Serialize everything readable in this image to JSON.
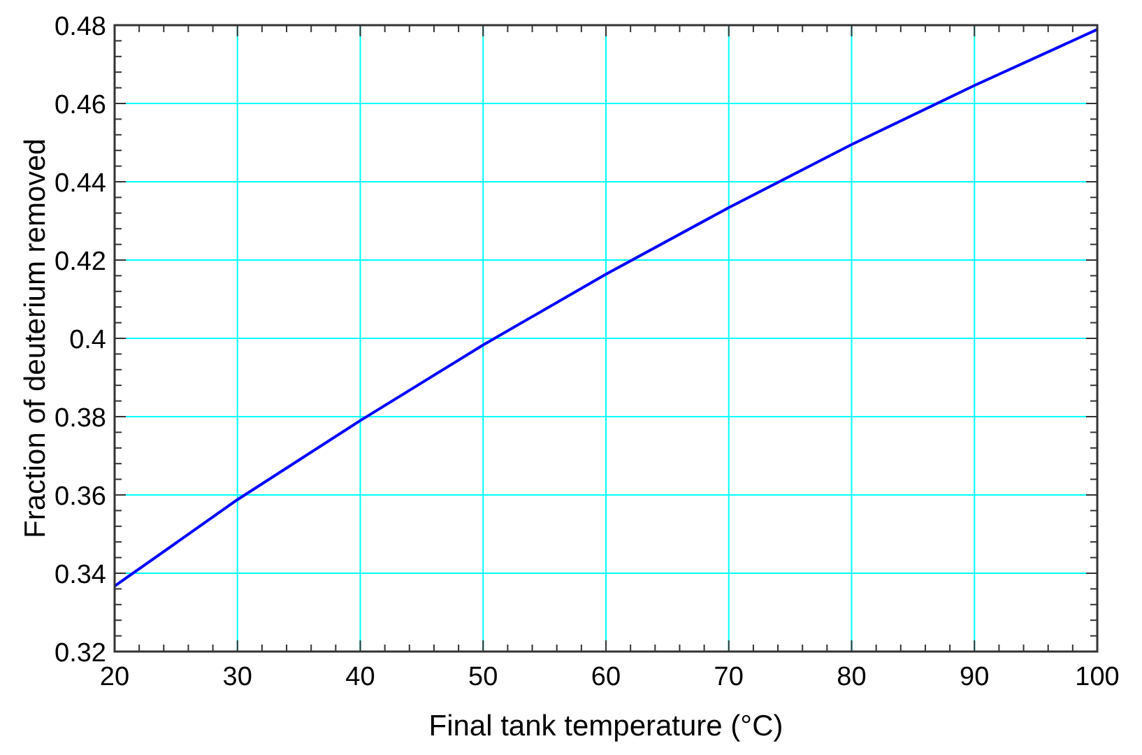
{
  "chart_data": {
    "type": "line",
    "xlabel": "Final tank temperature (°C)",
    "ylabel": "Fraction of deuterium removed",
    "x": [
      20,
      30,
      40,
      50,
      60,
      70,
      80,
      90,
      100
    ],
    "series": [
      {
        "color": "#0000ff",
        "values": [
          0.3367,
          0.3588,
          0.379,
          0.3983,
          0.4164,
          0.4334,
          0.4495,
          0.4646,
          0.4789
        ]
      }
    ],
    "xlim": [
      20,
      100
    ],
    "ylim": [
      0.32,
      0.48
    ],
    "xticks": [
      20,
      {
        "value": 22,
        "label": null
      },
      {
        "value": 24,
        "label": null
      },
      {
        "value": 26,
        "label": null
      },
      {
        "value": 28,
        "label": null
      },
      30,
      {
        "value": 32,
        "label": null
      },
      {
        "value": 34,
        "label": null
      },
      {
        "value": 36,
        "label": null
      },
      {
        "value": 38,
        "label": null
      },
      40,
      {
        "value": 42,
        "label": null
      },
      {
        "value": 44,
        "label": null
      },
      {
        "value": 46,
        "label": null
      },
      {
        "value": 48,
        "label": null
      },
      50,
      {
        "value": 52,
        "label": null
      },
      {
        "value": 54,
        "label": null
      },
      {
        "value": 56,
        "label": null
      },
      {
        "value": 58,
        "label": null
      },
      60,
      {
        "value": 62,
        "label": null
      },
      {
        "value": 64,
        "label": null
      },
      {
        "value": 66,
        "label": null
      },
      {
        "value": 68,
        "label": null
      },
      70,
      {
        "value": 72,
        "label": null
      },
      {
        "value": 74,
        "label": null
      },
      {
        "value": 76,
        "label": null
      },
      {
        "value": 78,
        "label": null
      },
      80,
      {
        "value": 82,
        "label": null
      },
      {
        "value": 84,
        "label": null
      },
      {
        "value": 86,
        "label": null
      },
      {
        "value": 88,
        "label": null
      },
      90,
      {
        "value": 92,
        "label": null
      },
      {
        "value": 94,
        "label": null
      },
      {
        "value": 96,
        "label": null
      },
      {
        "value": 98,
        "label": null
      },
      100
    ],
    "yticks": [
      0.32,
      {
        "value": 0.324,
        "label": null
      },
      {
        "value": 0.328,
        "label": null
      },
      {
        "value": 0.332,
        "label": null
      },
      {
        "value": 0.336,
        "label": null
      },
      0.34,
      {
        "value": 0.344,
        "label": null
      },
      {
        "value": 0.348,
        "label": null
      },
      {
        "value": 0.352,
        "label": null
      },
      {
        "value": 0.356,
        "label": null
      },
      0.36,
      {
        "value": 0.364,
        "label": null
      },
      {
        "value": 0.368,
        "label": null
      },
      {
        "value": 0.372,
        "label": null
      },
      {
        "value": 0.376,
        "label": null
      },
      0.38,
      {
        "value": 0.384,
        "label": null
      },
      {
        "value": 0.388,
        "label": null
      },
      {
        "value": 0.392,
        "label": null
      },
      {
        "value": 0.396,
        "label": null
      },
      {
        "value": 0.4,
        "label": "0.4"
      },
      {
        "value": 0.404,
        "label": null
      },
      {
        "value": 0.408,
        "label": null
      },
      {
        "value": 0.412,
        "label": null
      },
      {
        "value": 0.416,
        "label": null
      },
      0.42,
      {
        "value": 0.424,
        "label": null
      },
      {
        "value": 0.428,
        "label": null
      },
      {
        "value": 0.432,
        "label": null
      },
      {
        "value": 0.436,
        "label": null
      },
      0.44,
      {
        "value": 0.444,
        "label": null
      },
      {
        "value": 0.448,
        "label": null
      },
      {
        "value": 0.452,
        "label": null
      },
      {
        "value": 0.456,
        "label": null
      },
      0.46,
      {
        "value": 0.464,
        "label": null
      },
      {
        "value": 0.468,
        "label": null
      },
      {
        "value": 0.472,
        "label": null
      },
      {
        "value": 0.476,
        "label": null
      },
      0.48
    ],
    "grid": true,
    "line_style": "solid",
    "marker": "none"
  }
}
